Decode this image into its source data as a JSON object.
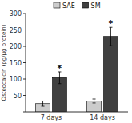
{
  "chart_data": {
    "type": "bar",
    "ylabel": "Osteocalcin (pg/μg protein)",
    "categories": [
      "7 days",
      "14 days"
    ],
    "series": [
      {
        "name": "SAE",
        "color": "#cccccc",
        "values": [
          25,
          33
        ],
        "errors": [
          8,
          6
        ]
      },
      {
        "name": "SM",
        "color": "#404040",
        "values": [
          104,
          230
        ],
        "errors": [
          18,
          28
        ]
      }
    ],
    "annotations": [
      {
        "text": "*",
        "category": "7 days",
        "series": "SM"
      },
      {
        "text": "*",
        "category": "14 days",
        "series": "SM"
      }
    ],
    "ylim": [
      0,
      300
    ],
    "yticks": [
      {
        "value": 0,
        "label": null
      },
      50,
      100,
      150,
      200,
      250,
      300
    ],
    "legend": "top",
    "grid": false
  }
}
